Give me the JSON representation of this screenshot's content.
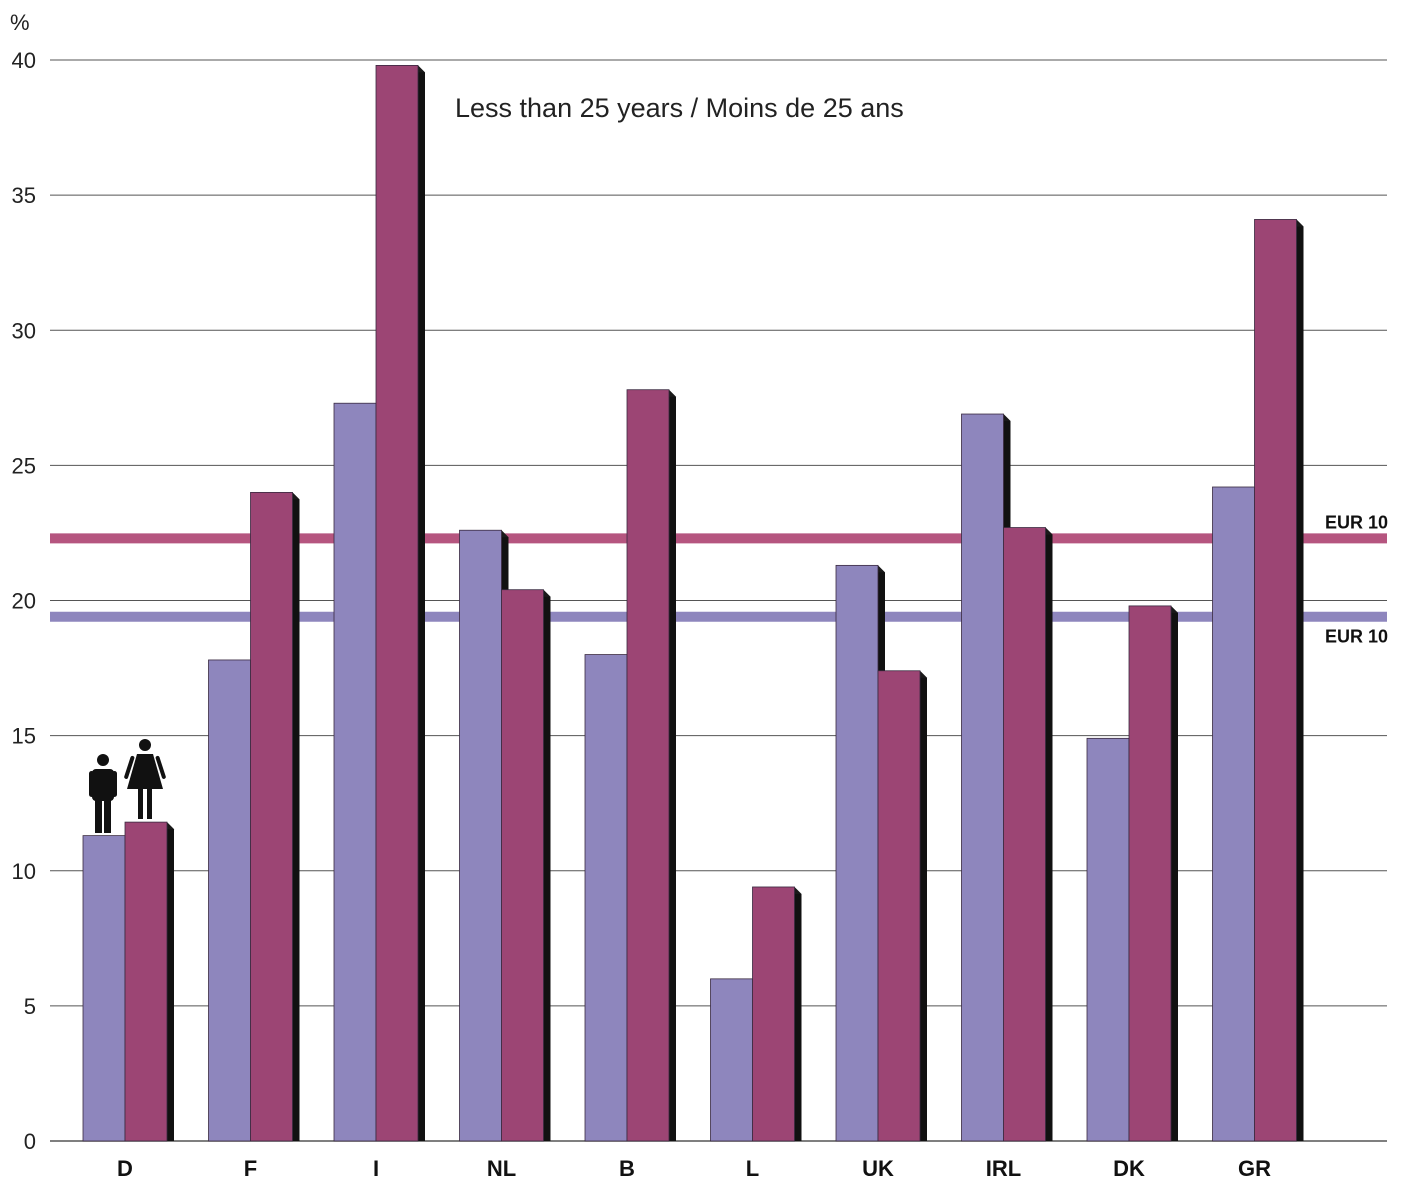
{
  "chart_data": {
    "type": "bar",
    "title": "Less than 25 years / Moins de 25 ans",
    "ylabel": "%",
    "ylim": [
      0,
      40
    ],
    "yticks": [
      0,
      5,
      10,
      15,
      20,
      25,
      30,
      35,
      40
    ],
    "grid": true,
    "categories": [
      "D",
      "F",
      "I",
      "NL",
      "B",
      "L",
      "UK",
      "IRL",
      "DK",
      "GR"
    ],
    "series": [
      {
        "icon": "man-icon",
        "color": "#8e86bd",
        "values": [
          11.3,
          17.8,
          27.3,
          22.6,
          18.0,
          6.0,
          21.3,
          26.9,
          14.9,
          24.2
        ]
      },
      {
        "icon": "woman-icon",
        "color": "#9c4574",
        "values": [
          11.8,
          24.0,
          39.8,
          20.4,
          27.8,
          9.4,
          17.4,
          22.7,
          19.8,
          34.1
        ]
      }
    ],
    "reference_lines": [
      {
        "label": "EUR 10",
        "value": 22.3,
        "color": "#b5557f"
      },
      {
        "label": "EUR 10",
        "value": 19.4,
        "color": "#8e86bd"
      }
    ]
  }
}
